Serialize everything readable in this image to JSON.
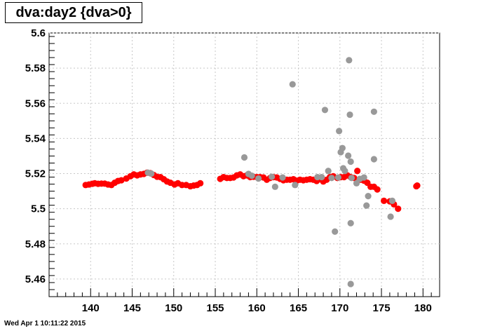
{
  "title": "dva:day2 {dva>0}",
  "timestamp": "Wed Apr  1 10:11:22 2015",
  "chart_data": {
    "type": "scatter",
    "title": "dva:day2 {dva>0}",
    "xlabel": "",
    "ylabel": "",
    "xlim": [
      135,
      182
    ],
    "ylim": [
      5.45,
      5.6
    ],
    "grid": true,
    "xticks": [
      140,
      145,
      150,
      155,
      160,
      165,
      170,
      175,
      180
    ],
    "xtick_labels": [
      "140",
      "145",
      "150",
      "155",
      "160",
      "165",
      "170",
      "175",
      "180"
    ],
    "yticks": [
      5.46,
      5.48,
      5.5,
      5.52,
      5.54,
      5.56,
      5.58,
      5.6
    ],
    "ytick_labels": [
      "5.46",
      "5.48",
      "5.5",
      "5.52",
      "5.54",
      "5.56",
      "5.58",
      "5.6"
    ],
    "colors": {
      "series1": "#ff0000",
      "series2": "#999999"
    },
    "series": [
      {
        "points": [
          [
            139.4,
            5.5135
          ],
          [
            139.8,
            5.5138
          ],
          [
            140.2,
            5.5142
          ],
          [
            140.5,
            5.5145
          ],
          [
            140.9,
            5.5142
          ],
          [
            141.3,
            5.5143
          ],
          [
            141.7,
            5.5143
          ],
          [
            142.1,
            5.5138
          ],
          [
            142.5,
            5.5135
          ],
          [
            142.9,
            5.5148
          ],
          [
            143.3,
            5.5158
          ],
          [
            143.7,
            5.5162
          ],
          [
            144.3,
            5.5172
          ],
          [
            144.8,
            5.5185
          ],
          [
            145.2,
            5.5195
          ],
          [
            145.6,
            5.519
          ],
          [
            146.0,
            5.5195
          ],
          [
            146.4,
            5.5198
          ],
          [
            146.8,
            5.5205
          ],
          [
            147.2,
            5.5202
          ],
          [
            147.6,
            5.5192
          ],
          [
            148.0,
            5.5182
          ],
          [
            148.4,
            5.518
          ],
          [
            148.8,
            5.5168
          ],
          [
            149.2,
            5.5155
          ],
          [
            149.6,
            5.5148
          ],
          [
            150.1,
            5.5138
          ],
          [
            150.5,
            5.5145
          ],
          [
            151.0,
            5.5135
          ],
          [
            151.5,
            5.5135
          ],
          [
            152.0,
            5.5128
          ],
          [
            152.4,
            5.5132
          ],
          [
            152.8,
            5.5135
          ],
          [
            153.2,
            5.5145
          ],
          [
            155.6,
            5.517
          ],
          [
            156.0,
            5.518
          ],
          [
            156.4,
            5.5175
          ],
          [
            156.8,
            5.5175
          ],
          [
            157.2,
            5.5178
          ],
          [
            157.6,
            5.519
          ],
          [
            158.0,
            5.5195
          ],
          [
            158.4,
            5.5185
          ],
          [
            158.8,
            5.519
          ],
          [
            159.2,
            5.518
          ],
          [
            159.6,
            5.5182
          ],
          [
            160.0,
            5.518
          ],
          [
            160.4,
            5.518
          ],
          [
            160.8,
            5.5178
          ],
          [
            161.2,
            5.5165
          ],
          [
            161.6,
            5.5175
          ],
          [
            162.0,
            5.518
          ],
          [
            162.4,
            5.5178
          ],
          [
            162.8,
            5.517
          ],
          [
            163.2,
            5.5162
          ],
          [
            163.6,
            5.5165
          ],
          [
            164.0,
            5.5165
          ],
          [
            164.4,
            5.5168
          ],
          [
            164.8,
            5.516
          ],
          [
            165.2,
            5.5165
          ],
          [
            165.6,
            5.5162
          ],
          [
            166.0,
            5.5165
          ],
          [
            166.4,
            5.5168
          ],
          [
            166.8,
            5.5165
          ],
          [
            167.2,
            5.5158
          ],
          [
            167.6,
            5.5168
          ],
          [
            168.0,
            5.5155
          ],
          [
            168.4,
            5.5165
          ],
          [
            168.8,
            5.518
          ],
          [
            169.2,
            5.5185
          ],
          [
            169.7,
            5.5175
          ],
          [
            170.1,
            5.518
          ],
          [
            170.5,
            5.518
          ],
          [
            170.9,
            5.519
          ],
          [
            171.3,
            5.518
          ],
          [
            171.7,
            5.5175
          ],
          [
            172.1,
            5.5215
          ],
          [
            172.5,
            5.5165
          ],
          [
            172.9,
            5.516
          ],
          [
            173.3,
            5.5148
          ],
          [
            173.7,
            5.5125
          ],
          [
            174.1,
            5.5125
          ],
          [
            174.5,
            5.511
          ],
          [
            175.3,
            5.5045
          ],
          [
            176.0,
            5.5042
          ],
          [
            176.5,
            5.5025
          ],
          [
            177.0,
            5.5
          ],
          [
            179.2,
            5.5128
          ],
          [
            179.3,
            5.5132
          ]
        ]
      },
      {
        "points": [
          [
            146.9,
            5.5205
          ],
          [
            147.3,
            5.52
          ],
          [
            158.5,
            5.5292
          ],
          [
            159.0,
            5.5198
          ],
          [
            159.4,
            5.5188
          ],
          [
            160.2,
            5.5172
          ],
          [
            161.8,
            5.5182
          ],
          [
            162.2,
            5.5125
          ],
          [
            163.1,
            5.5178
          ],
          [
            164.3,
            5.5708
          ],
          [
            164.6,
            5.5135
          ],
          [
            167.3,
            5.518
          ],
          [
            167.8,
            5.518
          ],
          [
            168.2,
            5.5562
          ],
          [
            168.6,
            5.5215
          ],
          [
            169.0,
            5.5175
          ],
          [
            169.4,
            5.487
          ],
          [
            169.8,
            5.5178
          ],
          [
            169.9,
            5.5442
          ],
          [
            170.1,
            5.5322
          ],
          [
            170.3,
            5.5345
          ],
          [
            170.4,
            5.523
          ],
          [
            170.6,
            5.5215
          ],
          [
            171.0,
            5.5302
          ],
          [
            171.1,
            5.5845
          ],
          [
            171.2,
            5.5535
          ],
          [
            171.3,
            5.5268
          ],
          [
            171.4,
            5.5175
          ],
          [
            171.3,
            5.4918
          ],
          [
            171.3,
            5.4572
          ],
          [
            172.0,
            5.5145
          ],
          [
            172.4,
            5.517
          ],
          [
            172.9,
            5.5178
          ],
          [
            173.2,
            5.5018
          ],
          [
            173.4,
            5.5072
          ],
          [
            174.1,
            5.5552
          ],
          [
            174.1,
            5.5282
          ],
          [
            176.1,
            5.4955
          ],
          [
            176.3,
            5.5045
          ]
        ]
      }
    ]
  }
}
